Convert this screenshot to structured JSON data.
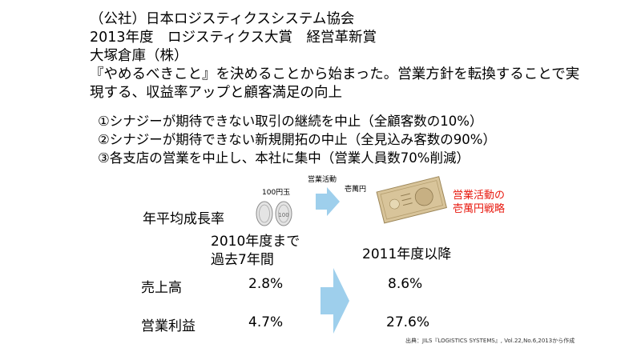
{
  "header": {
    "org": "（公社）日本ロジスティクスシステム協会",
    "award": "2013年度　ロジスティクス大賞　経営革新賞",
    "company": "大塚倉庫（株）",
    "summary_line1": "『やめるべきこと』を決めることから始まった。営業方針を転換することで実",
    "summary_line2": "現する、収益率アップと顧客満足の向上"
  },
  "items": [
    "①シナジーが期待できない取引の継続を中止（全顧客数の10%）",
    "②シナジーが期待できない新規開拓の中止（全見込み客数の90%）",
    "③各支店の営業を中止し、本社に集中（営業人員数70%削減）"
  ],
  "illustration": {
    "coins_label": "100円玉",
    "arrow_label": "営業活動",
    "bill_label": "壱萬円",
    "red_line1": "営業活動の",
    "red_line2": "壱萬円戦略"
  },
  "table": {
    "row_header": "年平均成長率",
    "col_before_line1": "2010年度まで",
    "col_before_line2": "過去7年間",
    "col_after": "2011年度以降",
    "rows": [
      {
        "label": "売上高",
        "before": "2.8%",
        "after": "8.6%"
      },
      {
        "label": "営業利益",
        "before": "4.7%",
        "after": "27.6%"
      }
    ]
  },
  "source": "出典：JILS『LOGISTICS SYSTEMS』, Vol.22,No.6,2013から作成",
  "colors": {
    "arrow": "#9ecfec",
    "accent_red": "#e8190f",
    "bill": "#d8c49a"
  },
  "icons": [
    "coin-icon",
    "arrow-right-icon",
    "banknote-icon"
  ]
}
